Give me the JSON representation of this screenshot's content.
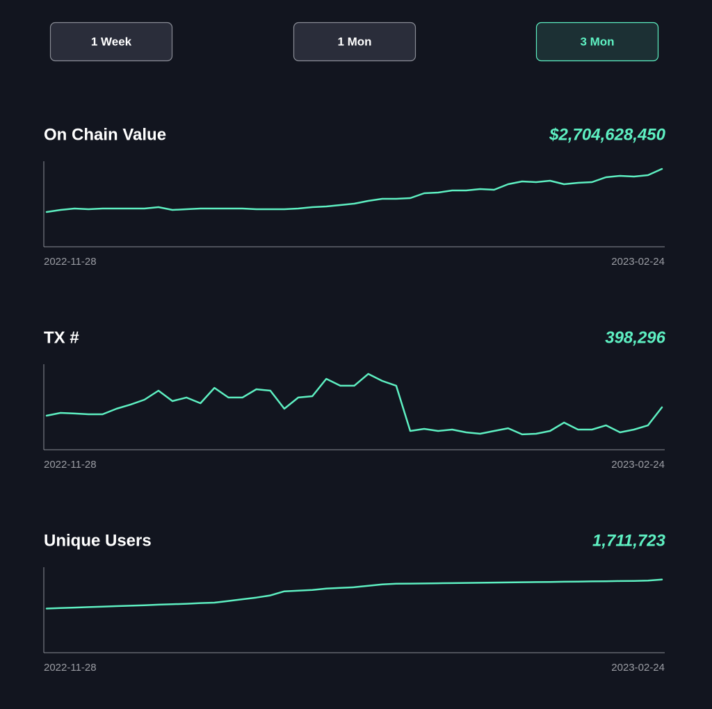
{
  "buttons": [
    {
      "label": "1 Week",
      "selected": false
    },
    {
      "label": "1 Mon",
      "selected": false
    },
    {
      "label": "3 Mon",
      "selected": true
    }
  ],
  "chart_data": [
    {
      "type": "line",
      "title": "On Chain Value",
      "headline": "$2,704,628,450",
      "categories": [
        "2022-11-28",
        null,
        null,
        null,
        null,
        null,
        null,
        null,
        null,
        null,
        null,
        null,
        null,
        null,
        null,
        null,
        null,
        null,
        null,
        null,
        null,
        null,
        null,
        null,
        null,
        null,
        null,
        null,
        null,
        null,
        null,
        null,
        null,
        null,
        null,
        null,
        null,
        null,
        null,
        null,
        null,
        null,
        null,
        null,
        "2023-02-24"
      ],
      "values": [
        1208000000,
        1280000000,
        1328000000,
        1304000000,
        1328000000,
        1328000000,
        1328000000,
        1328000000,
        1377000000,
        1280000000,
        1304000000,
        1328000000,
        1328000000,
        1328000000,
        1328000000,
        1304000000,
        1304000000,
        1304000000,
        1328000000,
        1377000000,
        1401000000,
        1449000000,
        1497000000,
        1594000000,
        1666000000,
        1666000000,
        1690000000,
        1860000000,
        1884000000,
        1956000000,
        1956000000,
        2004000000,
        1980000000,
        2174000000,
        2270000000,
        2246000000,
        2294000000,
        2174000000,
        2222000000,
        2246000000,
        2415000000,
        2463000000,
        2439000000,
        2487000000,
        2704628450
      ],
      "color": "#5ef0c2",
      "ylim": [
        0,
        2970000000
      ]
    },
    {
      "type": "line",
      "title": "TX #",
      "headline": "398,296",
      "categories": [
        "2022-11-28",
        null,
        null,
        null,
        null,
        null,
        null,
        null,
        null,
        null,
        null,
        null,
        null,
        null,
        null,
        null,
        null,
        null,
        null,
        null,
        null,
        null,
        null,
        null,
        null,
        null,
        null,
        null,
        null,
        null,
        null,
        null,
        null,
        null,
        null,
        null,
        null,
        null,
        null,
        null,
        null,
        null,
        null,
        null,
        "2023-02-24"
      ],
      "values": [
        320000,
        346000,
        340000,
        333000,
        333000,
        385000,
        424000,
        470000,
        555000,
        457000,
        490000,
        437000,
        581000,
        490000,
        490000,
        568000,
        555000,
        385000,
        490000,
        503000,
        666000,
        601000,
        601000,
        712000,
        646000,
        601000,
        176000,
        196000,
        176000,
        189000,
        163000,
        150000,
        176000,
        202000,
        144000,
        150000,
        176000,
        255000,
        189000,
        189000,
        229000,
        163000,
        189000,
        229000,
        398296
      ],
      "color": "#5ef0c2",
      "ylim": [
        0,
        803000
      ]
    },
    {
      "type": "line",
      "title": "Unique Users",
      "headline": "1,711,723",
      "categories": [
        "2022-11-28",
        null,
        null,
        null,
        null,
        null,
        null,
        null,
        null,
        null,
        null,
        null,
        null,
        null,
        null,
        null,
        null,
        null,
        null,
        null,
        null,
        null,
        null,
        null,
        null,
        null,
        null,
        null,
        null,
        null,
        null,
        null,
        null,
        null,
        null,
        null,
        null,
        null,
        null,
        null,
        null,
        null,
        null,
        null,
        "2023-02-24"
      ],
      "values": [
        1032000,
        1044000,
        1055000,
        1066000,
        1077000,
        1089000,
        1100000,
        1111000,
        1123000,
        1134000,
        1145000,
        1161000,
        1170000,
        1210000,
        1250000,
        1290000,
        1340000,
        1436000,
        1452000,
        1468000,
        1500000,
        1516000,
        1532000,
        1565000,
        1597000,
        1613000,
        1616000,
        1620000,
        1624000,
        1628000,
        1632000,
        1636000,
        1640000,
        1644000,
        1648000,
        1652000,
        1656000,
        1660000,
        1664000,
        1668000,
        1672000,
        1676000,
        1680000,
        1686000,
        1711723
      ],
      "color": "#5ef0c2",
      "ylim": [
        0,
        2000000
      ]
    }
  ]
}
